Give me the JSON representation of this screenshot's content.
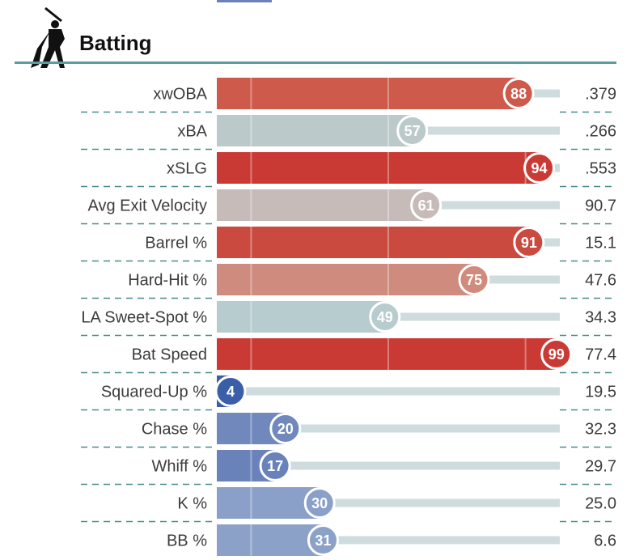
{
  "header": {
    "title": "Batting",
    "icon": "batter-silhouette-icon"
  },
  "chart_data": {
    "type": "bar",
    "orientation": "horizontal",
    "xlim": [
      0,
      100
    ],
    "colors": {
      "header_rule": "#5b9c9c",
      "track": "#cfdcdd",
      "divider": "#4a8a8a"
    },
    "metrics": [
      {
        "label": "xwOBA",
        "percentile": 88,
        "value": ".379",
        "color": "#cd5a4b"
      },
      {
        "label": "xBA",
        "percentile": 57,
        "value": ".266",
        "color": "#bcc9cb"
      },
      {
        "label": "xSLG",
        "percentile": 94,
        "value": ".553",
        "color": "#c93a34"
      },
      {
        "label": "Avg Exit Velocity",
        "percentile": 61,
        "value": "90.7",
        "color": "#c6bbb8"
      },
      {
        "label": "Barrel %",
        "percentile": 91,
        "value": "15.1",
        "color": "#cb4a3f"
      },
      {
        "label": "Hard-Hit %",
        "percentile": 75,
        "value": "47.6",
        "color": "#cf8b7d"
      },
      {
        "label": "LA Sweet-Spot %",
        "percentile": 49,
        "value": "34.3",
        "color": "#b7cccf"
      },
      {
        "label": "Bat Speed",
        "percentile": 99,
        "value": "77.4",
        "color": "#c93a34"
      },
      {
        "label": "Squared-Up %",
        "percentile": 4,
        "value": "19.5",
        "color": "#3a5fa8"
      },
      {
        "label": "Chase %",
        "percentile": 20,
        "value": "32.3",
        "color": "#7088bc"
      },
      {
        "label": "Whiff %",
        "percentile": 17,
        "value": "29.7",
        "color": "#6a82ba"
      },
      {
        "label": "K %",
        "percentile": 30,
        "value": "25.0",
        "color": "#8aa0c8"
      },
      {
        "label": "BB %",
        "percentile": 31,
        "value": "6.6",
        "color": "#8ba1c8"
      }
    ]
  }
}
